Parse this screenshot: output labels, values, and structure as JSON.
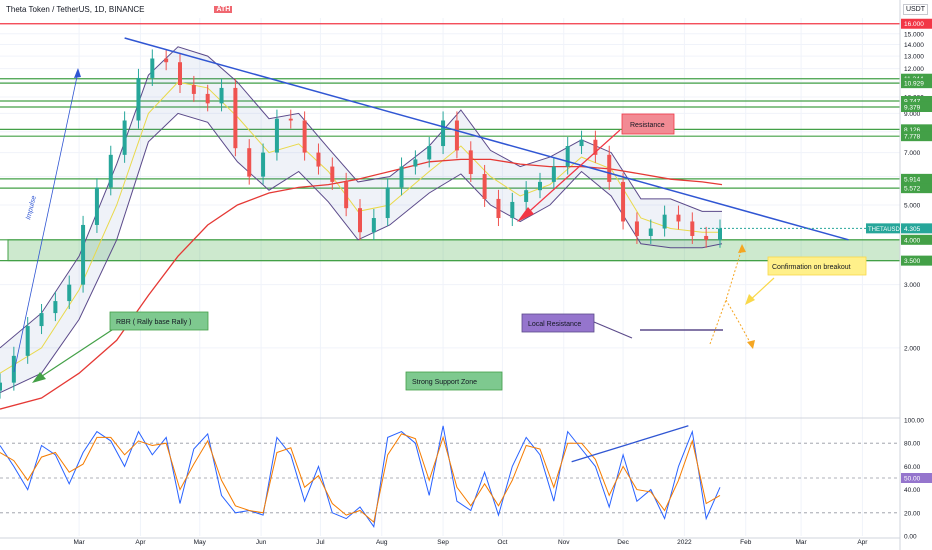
{
  "header": {
    "symbol_title": "Theta Token / TetherUS, 1D, BINANCE",
    "ath_label": "ATH",
    "currency": "USDT"
  },
  "chart_data": [
    {
      "type": "line",
      "panel": "price",
      "scale": "log",
      "title": "Theta Token / TetherUS, 1D, BINANCE",
      "ylim": [
        1.3,
        16.6
      ],
      "xlim": [
        "2021-01-20",
        "2022-04-20"
      ],
      "x_ticks": [
        {
          "date": "2021-03-01",
          "label": "Mar"
        },
        {
          "date": "2021-04-01",
          "label": "Apr"
        },
        {
          "date": "2021-05-01",
          "label": "May"
        },
        {
          "date": "2021-06-01",
          "label": "Jun"
        },
        {
          "date": "2021-07-01",
          "label": "Jul"
        },
        {
          "date": "2021-08-01",
          "label": "Aug"
        },
        {
          "date": "2021-09-01",
          "label": "Sep"
        },
        {
          "date": "2021-10-01",
          "label": "Oct"
        },
        {
          "date": "2021-11-01",
          "label": "Nov"
        },
        {
          "date": "2021-12-01",
          "label": "Dec"
        },
        {
          "date": "2022-01-01",
          "label": "2022"
        },
        {
          "date": "2022-02-01",
          "label": "Feb"
        },
        {
          "date": "2022-03-01",
          "label": "Mar"
        },
        {
          "date": "2022-04-01",
          "label": "Apr"
        }
      ],
      "y_ticks": [
        "2.000",
        "3.000",
        "5.000",
        "6.000",
        "7.000",
        "8.000",
        "9.000",
        "10.000",
        "11.000",
        "12.000",
        "13.000",
        "14.000",
        "15.000"
      ],
      "series": [
        {
          "role": "price",
          "color": "#26a69a",
          "x": [
            "2021-01-20",
            "2021-01-27",
            "2021-02-03",
            "2021-02-10",
            "2021-02-17",
            "2021-02-24",
            "2021-03-03",
            "2021-03-10",
            "2021-03-17",
            "2021-03-24",
            "2021-03-31",
            "2021-04-07",
            "2021-04-14",
            "2021-04-21",
            "2021-04-28",
            "2021-05-05",
            "2021-05-12",
            "2021-05-19",
            "2021-05-26",
            "2021-06-02",
            "2021-06-09",
            "2021-06-16",
            "2021-06-23",
            "2021-06-30",
            "2021-07-07",
            "2021-07-14",
            "2021-07-21",
            "2021-07-28",
            "2021-08-04",
            "2021-08-11",
            "2021-08-18",
            "2021-08-25",
            "2021-09-01",
            "2021-09-08",
            "2021-09-15",
            "2021-09-22",
            "2021-09-29",
            "2021-10-06",
            "2021-10-13",
            "2021-10-20",
            "2021-10-27",
            "2021-11-03",
            "2021-11-10",
            "2021-11-17",
            "2021-11-24",
            "2021-12-01",
            "2021-12-08",
            "2021-12-15",
            "2021-12-22",
            "2021-12-29",
            "2022-01-05",
            "2022-01-12",
            "2022-01-19"
          ],
          "y": [
            1.6,
            1.9,
            2.3,
            2.5,
            2.7,
            3.0,
            4.4,
            5.6,
            6.9,
            8.6,
            11.3,
            12.8,
            12.5,
            10.8,
            10.2,
            9.6,
            10.6,
            7.2,
            6.0,
            7.0,
            8.7,
            8.6,
            7.0,
            6.4,
            5.8,
            4.9,
            4.2,
            4.6,
            5.6,
            6.4,
            6.7,
            7.3,
            8.6,
            7.1,
            6.1,
            5.2,
            4.6,
            5.1,
            5.5,
            5.8,
            6.4,
            7.3,
            7.6,
            6.9,
            5.8,
            4.5,
            4.1,
            4.3,
            4.7,
            4.5,
            4.1,
            4.0,
            4.3
          ]
        },
        {
          "role": "upper-band",
          "color": "#5b4a8a",
          "x": [
            "2021-01-20",
            "2021-02-10",
            "2021-03-01",
            "2021-03-20",
            "2021-04-05",
            "2021-04-20",
            "2021-05-05",
            "2021-05-20",
            "2021-06-05",
            "2021-06-20",
            "2021-07-05",
            "2021-07-20",
            "2021-08-05",
            "2021-08-25",
            "2021-09-10",
            "2021-09-25",
            "2021-10-10",
            "2021-10-25",
            "2021-11-10",
            "2021-11-25",
            "2021-12-10",
            "2021-12-25",
            "2022-01-10",
            "2022-01-20"
          ],
          "y": [
            2.0,
            2.5,
            3.6,
            6.5,
            11.5,
            13.8,
            13.0,
            11.0,
            8.7,
            9.0,
            7.2,
            5.8,
            6.0,
            7.3,
            9.2,
            7.1,
            6.4,
            6.8,
            7.6,
            7.0,
            5.2,
            5.2,
            4.8,
            4.8
          ]
        },
        {
          "role": "lower-band",
          "color": "#5b4a8a",
          "x": [
            "2021-01-20",
            "2021-02-10",
            "2021-03-01",
            "2021-03-20",
            "2021-04-05",
            "2021-04-20",
            "2021-05-05",
            "2021-05-20",
            "2021-06-05",
            "2021-06-20",
            "2021-07-05",
            "2021-07-20",
            "2021-08-05",
            "2021-08-25",
            "2021-09-10",
            "2021-09-25",
            "2021-10-10",
            "2021-10-25",
            "2021-11-10",
            "2021-11-25",
            "2021-12-10",
            "2021-12-25",
            "2022-01-10",
            "2022-01-20"
          ],
          "y": [
            1.5,
            1.7,
            2.4,
            4.0,
            7.5,
            9.0,
            8.5,
            6.6,
            5.5,
            6.2,
            5.1,
            4.0,
            4.4,
            5.4,
            6.1,
            5.0,
            4.5,
            5.0,
            6.2,
            5.3,
            3.9,
            3.8,
            3.8,
            3.9
          ]
        },
        {
          "role": "short-ma",
          "color": "#e9d94a",
          "x": [
            "2021-01-20",
            "2021-02-10",
            "2021-03-01",
            "2021-03-20",
            "2021-04-05",
            "2021-04-20",
            "2021-05-05",
            "2021-05-20",
            "2021-06-05",
            "2021-06-20",
            "2021-07-05",
            "2021-07-20",
            "2021-08-05",
            "2021-08-25",
            "2021-09-10",
            "2021-09-25",
            "2021-10-10",
            "2021-10-25",
            "2021-11-10",
            "2021-11-25",
            "2021-12-10",
            "2021-12-25",
            "2022-01-10",
            "2022-01-20"
          ],
          "y": [
            1.7,
            2.0,
            2.9,
            5.0,
            9.0,
            11.0,
            10.6,
            8.8,
            7.0,
            7.4,
            6.2,
            4.8,
            5.0,
            6.2,
            7.3,
            6.0,
            5.3,
            5.7,
            6.8,
            6.3,
            4.6,
            4.3,
            4.2,
            4.2
          ]
        },
        {
          "role": "long-ma",
          "color": "#e53935",
          "x": [
            "2021-01-20",
            "2021-02-10",
            "2021-03-01",
            "2021-03-20",
            "2021-04-05",
            "2021-04-20",
            "2021-05-05",
            "2021-05-20",
            "2021-06-05",
            "2021-06-20",
            "2021-07-05",
            "2021-07-20",
            "2021-08-05",
            "2021-08-25",
            "2021-09-10",
            "2021-09-25",
            "2021-10-10",
            "2021-10-25",
            "2021-11-10",
            "2021-11-25",
            "2021-12-10",
            "2021-12-25",
            "2022-01-10",
            "2022-01-20"
          ],
          "y": [
            1.35,
            1.45,
            1.7,
            2.1,
            2.8,
            3.6,
            4.4,
            5.0,
            5.4,
            5.6,
            5.7,
            5.9,
            6.2,
            6.6,
            6.7,
            6.7,
            6.5,
            6.4,
            6.4,
            6.3,
            6.1,
            5.9,
            5.8,
            5.7
          ]
        }
      ],
      "horizontal_levels": [
        {
          "value": 16.0,
          "label": "16.000",
          "color": "#f23645"
        },
        {
          "value": 11.244,
          "label": "11.244",
          "color": "#43a047"
        },
        {
          "value": 10.929,
          "label": "10.929",
          "color": "#43a047"
        },
        {
          "value": 9.747,
          "label": "9.747",
          "color": "#43a047"
        },
        {
          "value": 9.379,
          "label": "9.379",
          "color": "#43a047"
        },
        {
          "value": 8.126,
          "label": "8.126",
          "color": "#43a047"
        },
        {
          "value": 7.778,
          "label": "7.778",
          "color": "#43a047"
        },
        {
          "value": 5.914,
          "label": "5.914",
          "color": "#43a047"
        },
        {
          "value": 5.572,
          "label": "5.572",
          "color": "#43a047"
        },
        {
          "value": 4.0,
          "label": "4.000",
          "color": "#43a047"
        },
        {
          "value": 3.5,
          "label": "3.500",
          "color": "#43a047"
        }
      ],
      "current_price": {
        "label": "THETAUSDT",
        "value": "4.305",
        "color": "#26a69a"
      },
      "support_zone": {
        "low": 3.5,
        "high": 4.0,
        "label": "Strong Support Zone"
      },
      "trendline": {
        "color": "#3056d3",
        "from": {
          "date": "2021-03-24",
          "y": 14.6
        },
        "to": {
          "date": "2022-03-25",
          "y": 4.0
        }
      },
      "annotations": {
        "resistance": "Resistance",
        "impulse": "Impulse",
        "rbr": "RBR ( Rally base Rally )",
        "local_resistance": "Local Resistance",
        "confirmation": "Confirmation on breakout",
        "support": "Strong Support Zone"
      }
    },
    {
      "type": "line",
      "panel": "rsi",
      "ylim": [
        0,
        100
      ],
      "y_ticks": [
        "0.00",
        "20.00",
        "40.00",
        "60.00",
        "80.00",
        "100.00"
      ],
      "reference_lines": [
        80,
        50,
        20
      ],
      "marker": {
        "value": 50,
        "label": "50.00",
        "color": "#9575cd"
      },
      "series": [
        {
          "role": "k",
          "color": "#2962ff",
          "x": [
            "2021-01-20",
            "2021-01-27",
            "2021-02-03",
            "2021-02-10",
            "2021-02-17",
            "2021-02-24",
            "2021-03-03",
            "2021-03-10",
            "2021-03-17",
            "2021-03-24",
            "2021-03-31",
            "2021-04-07",
            "2021-04-14",
            "2021-04-21",
            "2021-04-28",
            "2021-05-05",
            "2021-05-12",
            "2021-05-19",
            "2021-05-26",
            "2021-06-02",
            "2021-06-09",
            "2021-06-16",
            "2021-06-23",
            "2021-06-30",
            "2021-07-07",
            "2021-07-14",
            "2021-07-21",
            "2021-07-28",
            "2021-08-04",
            "2021-08-11",
            "2021-08-18",
            "2021-08-25",
            "2021-09-01",
            "2021-09-08",
            "2021-09-15",
            "2021-09-22",
            "2021-09-29",
            "2021-10-06",
            "2021-10-13",
            "2021-10-20",
            "2021-10-27",
            "2021-11-03",
            "2021-11-10",
            "2021-11-17",
            "2021-11-24",
            "2021-12-01",
            "2021-12-08",
            "2021-12-15",
            "2021-12-22",
            "2021-12-29",
            "2022-01-05",
            "2022-01-12",
            "2022-01-19"
          ],
          "y": [
            78,
            60,
            40,
            78,
            70,
            45,
            72,
            90,
            82,
            60,
            90,
            70,
            85,
            28,
            75,
            88,
            35,
            20,
            22,
            18,
            85,
            70,
            30,
            60,
            20,
            15,
            25,
            8,
            85,
            90,
            80,
            35,
            95,
            30,
            22,
            55,
            18,
            60,
            85,
            70,
            30,
            90,
            75,
            60,
            25,
            70,
            30,
            40,
            15,
            60,
            90,
            15,
            42
          ]
        },
        {
          "role": "d",
          "color": "#f57c00",
          "x": [
            "2021-01-20",
            "2021-01-27",
            "2021-02-03",
            "2021-02-10",
            "2021-02-17",
            "2021-02-24",
            "2021-03-03",
            "2021-03-10",
            "2021-03-17",
            "2021-03-24",
            "2021-03-31",
            "2021-04-07",
            "2021-04-14",
            "2021-04-21",
            "2021-04-28",
            "2021-05-05",
            "2021-05-12",
            "2021-05-19",
            "2021-05-26",
            "2021-06-02",
            "2021-06-09",
            "2021-06-16",
            "2021-06-23",
            "2021-06-30",
            "2021-07-07",
            "2021-07-14",
            "2021-07-21",
            "2021-07-28",
            "2021-08-04",
            "2021-08-11",
            "2021-08-18",
            "2021-08-25",
            "2021-09-01",
            "2021-09-08",
            "2021-09-15",
            "2021-09-22",
            "2021-09-29",
            "2021-10-06",
            "2021-10-13",
            "2021-10-20",
            "2021-10-27",
            "2021-11-03",
            "2021-11-10",
            "2021-11-17",
            "2021-11-24",
            "2021-12-01",
            "2021-12-08",
            "2021-12-15",
            "2021-12-22",
            "2021-12-29",
            "2022-01-05",
            "2022-01-12",
            "2022-01-19"
          ],
          "y": [
            72,
            65,
            48,
            68,
            72,
            55,
            62,
            85,
            85,
            70,
            82,
            78,
            80,
            40,
            62,
            82,
            48,
            26,
            22,
            20,
            72,
            76,
            42,
            52,
            28,
            18,
            22,
            12,
            70,
            88,
            84,
            48,
            85,
            42,
            26,
            45,
            26,
            48,
            78,
            75,
            42,
            80,
            80,
            66,
            35,
            60,
            40,
            38,
            22,
            48,
            82,
            28,
            35
          ]
        }
      ],
      "divergence_line": {
        "color": "#3056d3",
        "from": {
          "date": "2021-11-05",
          "y": 64
        },
        "to": {
          "date": "2022-01-03",
          "y": 95
        }
      }
    }
  ]
}
